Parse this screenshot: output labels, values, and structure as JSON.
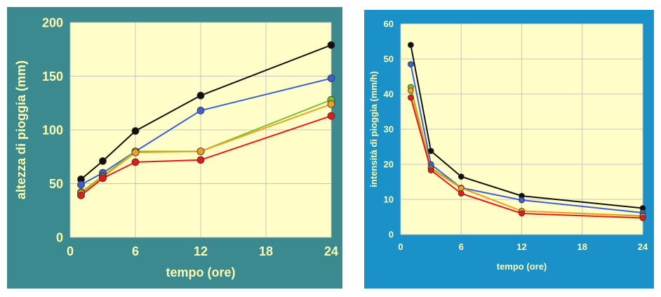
{
  "chart_data": [
    {
      "type": "line",
      "title": "",
      "xlabel": "tempo (ore)",
      "ylabel": "altezza di pioggia (mm)",
      "xlim": [
        0,
        24
      ],
      "ylim": [
        0,
        200
      ],
      "xticks": [
        0,
        6,
        12,
        18,
        24
      ],
      "yticks": [
        0,
        50,
        100,
        150,
        200
      ],
      "grid": true,
      "legend": "none",
      "colors": {
        "panel_bg": "#3a8a8f",
        "plot_bg": "#fffdc8",
        "grid": "#c4c4c4",
        "text": "#fff9b0"
      },
      "x": [
        1,
        3,
        6,
        12,
        24
      ],
      "series": [
        {
          "color": "#111111",
          "values": [
            54,
            71,
            99,
            132,
            179
          ]
        },
        {
          "color": "#3b5fd8",
          "values": [
            49,
            60,
            80,
            118,
            148
          ]
        },
        {
          "color": "#7bbf2a",
          "values": [
            42,
            57,
            80,
            80,
            128
          ]
        },
        {
          "color": "#f0a020",
          "values": [
            41,
            56,
            79,
            80,
            124
          ]
        },
        {
          "color": "#e81818",
          "values": [
            39,
            55,
            70,
            72,
            113
          ]
        }
      ]
    },
    {
      "type": "line",
      "title": "",
      "xlabel": "tempo (ore)",
      "ylabel": "intensità di pioggia (mm/h)",
      "xlim": [
        0,
        24
      ],
      "ylim": [
        0,
        60
      ],
      "xticks": [
        0,
        6,
        12,
        18,
        24
      ],
      "yticks": [
        0,
        10,
        20,
        30,
        40,
        50,
        60
      ],
      "grid": true,
      "legend": "none",
      "colors": {
        "panel_bg": "#1a92c9",
        "plot_bg": "#fffdc8",
        "grid": "#c4c4c4",
        "text": "#fff9b0"
      },
      "x": [
        1,
        3,
        6,
        12,
        24
      ],
      "series": [
        {
          "color": "#111111",
          "values": [
            54,
            23.8,
            16.5,
            11,
            7.5
          ]
        },
        {
          "color": "#3b5fd8",
          "values": [
            48.5,
            20,
            13.3,
            9.8,
            6.2
          ]
        },
        {
          "color": "#7bbf2a",
          "values": [
            42,
            19,
            13.3,
            6.7,
            5.3
          ]
        },
        {
          "color": "#f0a020",
          "values": [
            41,
            18.7,
            13.2,
            6.7,
            5.2
          ]
        },
        {
          "color": "#e81818",
          "values": [
            39,
            18.3,
            11.7,
            6,
            4.7
          ]
        }
      ]
    }
  ]
}
